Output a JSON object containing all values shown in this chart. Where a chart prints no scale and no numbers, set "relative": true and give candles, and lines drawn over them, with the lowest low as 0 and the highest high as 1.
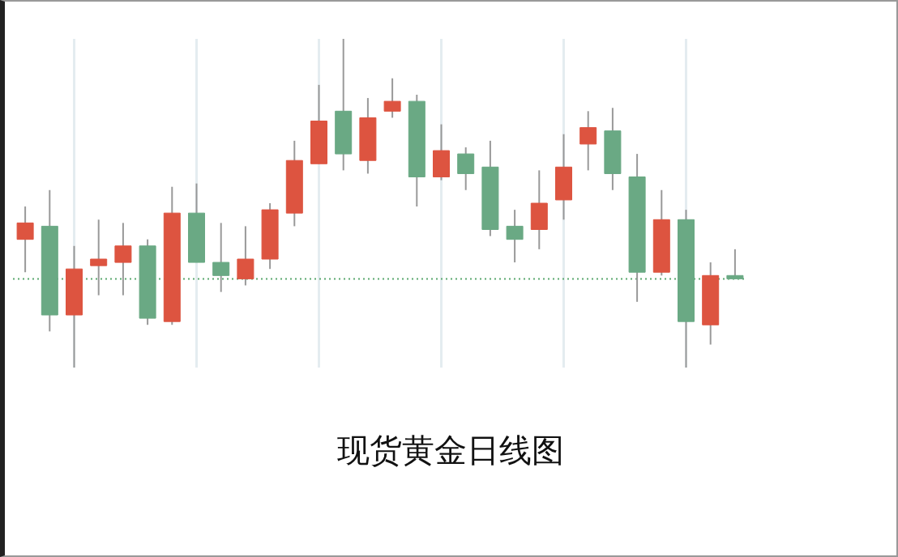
{
  "chart_data": {
    "type": "candlestick",
    "title": "现货黄金日线图",
    "relative": true,
    "grid": "x",
    "categories": [
      null,
      null,
      null,
      null,
      null,
      null,
      null,
      null,
      null,
      null,
      null,
      null,
      null,
      null,
      null,
      null,
      null,
      null,
      null,
      null,
      null,
      null,
      null,
      null,
      null,
      null,
      null,
      null,
      null,
      null
    ],
    "ohlc": [
      [
        0.39,
        0.49,
        0.29,
        0.44
      ],
      [
        0.43,
        0.54,
        0.11,
        0.16
      ],
      [
        0.16,
        0.37,
        0,
        0.3
      ],
      [
        0.31,
        0.45,
        0.22,
        0.33
      ],
      [
        0.32,
        0.44,
        0.22,
        0.37
      ],
      [
        0.37,
        0.39,
        0.13,
        0.15
      ],
      [
        0.14,
        0.55,
        0.13,
        0.47
      ],
      [
        0.47,
        0.56,
        0.32,
        0.32
      ],
      [
        0.32,
        0.44,
        0.23,
        0.28
      ],
      [
        0.27,
        0.43,
        0.25,
        0.33
      ],
      [
        0.33,
        0.5,
        0.3,
        0.48
      ],
      [
        0.47,
        0.69,
        0.43,
        0.63
      ],
      [
        0.62,
        0.86,
        0.62,
        0.75
      ],
      [
        0.78,
        1,
        0.6,
        0.65
      ],
      [
        0.63,
        0.82,
        0.59,
        0.76
      ],
      [
        0.78,
        0.88,
        0.76,
        0.81
      ],
      [
        0.81,
        0.83,
        0.49,
        0.58
      ],
      [
        0.58,
        0.74,
        0.57,
        0.66
      ],
      [
        0.65,
        0.67,
        0.54,
        0.59
      ],
      [
        0.61,
        0.69,
        0.4,
        0.42
      ],
      [
        0.43,
        0.48,
        0.32,
        0.39
      ],
      [
        0.42,
        0.6,
        0.36,
        0.5
      ],
      [
        0.51,
        0.71,
        0.45,
        0.61
      ],
      [
        0.68,
        0.78,
        0.6,
        0.73
      ],
      [
        0.72,
        0.79,
        0.54,
        0.59
      ],
      [
        0.58,
        0.65,
        0.2,
        0.29
      ],
      [
        0.29,
        0.54,
        0.28,
        0.45
      ],
      [
        0.45,
        0.48,
        0,
        0.14
      ],
      [
        0.13,
        0.32,
        0.07,
        0.28
      ],
      [
        0.28,
        0.36,
        0.27,
        0.27
      ]
    ],
    "colors": [
      "#dd5440",
      "#6aa984",
      "#dd5440",
      "#dd5440",
      "#dd5440",
      "#6aa984",
      "#dd5440",
      "#6aa984",
      "#6aa984",
      "#dd5440",
      "#dd5440",
      "#dd5440",
      "#dd5440",
      "#6aa984",
      "#dd5440",
      "#dd5440",
      "#6aa984",
      "#dd5440",
      "#6aa984",
      "#6aa984",
      "#6aa984",
      "#dd5440",
      "#dd5440",
      "#dd5440",
      "#6aa984",
      "#6aa984",
      "#dd5440",
      "#6aa984",
      "#dd5440",
      "#6aa984"
    ],
    "ref_lines": [
      {
        "axis": "y",
        "value": 0.27,
        "color": "#5aa86e",
        "line_style": "dotted"
      }
    ]
  }
}
